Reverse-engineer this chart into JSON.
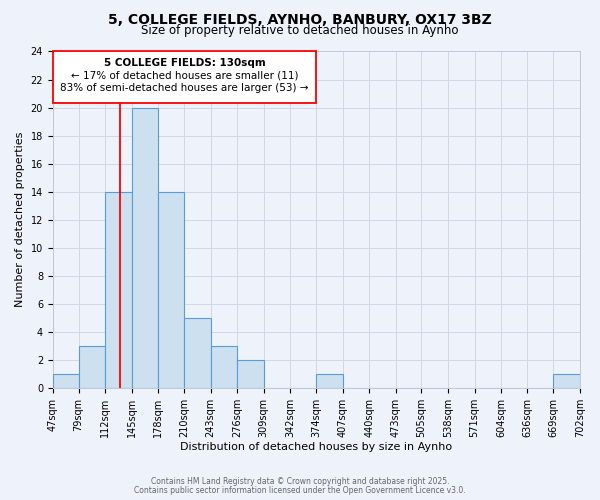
{
  "title": "5, COLLEGE FIELDS, AYNHO, BANBURY, OX17 3BZ",
  "subtitle": "Size of property relative to detached houses in Aynho",
  "xlabel": "Distribution of detached houses by size in Aynho",
  "ylabel": "Number of detached properties",
  "bin_edges": [
    47,
    79,
    112,
    145,
    178,
    210,
    243,
    276,
    309,
    342,
    374,
    407,
    440,
    473,
    505,
    538,
    571,
    604,
    636,
    669,
    702
  ],
  "bin_labels": [
    "47sqm",
    "79sqm",
    "112sqm",
    "145sqm",
    "178sqm",
    "210sqm",
    "243sqm",
    "276sqm",
    "309sqm",
    "342sqm",
    "374sqm",
    "407sqm",
    "440sqm",
    "473sqm",
    "505sqm",
    "538sqm",
    "571sqm",
    "604sqm",
    "636sqm",
    "669sqm",
    "702sqm"
  ],
  "counts": [
    1,
    3,
    14,
    20,
    14,
    5,
    3,
    2,
    0,
    0,
    1,
    0,
    0,
    0,
    0,
    0,
    0,
    0,
    0,
    1
  ],
  "bar_color": "#cce0f0",
  "bar_edge_color": "#5b9bd5",
  "grid_color": "#d0d8e8",
  "bg_color": "#eef2fa",
  "subject_value": 130,
  "annotation_title": "5 COLLEGE FIELDS: 130sqm",
  "annotation_line1": "← 17% of detached houses are smaller (11)",
  "annotation_line2": "83% of semi-detached houses are larger (53) →",
  "footer_line1": "Contains HM Land Registry data © Crown copyright and database right 2025.",
  "footer_line2": "Contains public sector information licensed under the Open Government Licence v3.0.",
  "ylim": [
    0,
    24
  ],
  "yticks": [
    0,
    2,
    4,
    6,
    8,
    10,
    12,
    14,
    16,
    18,
    20,
    22,
    24
  ],
  "title_fontsize": 10,
  "subtitle_fontsize": 8.5,
  "axis_label_fontsize": 8,
  "tick_fontsize": 7,
  "footer_fontsize": 5.5
}
